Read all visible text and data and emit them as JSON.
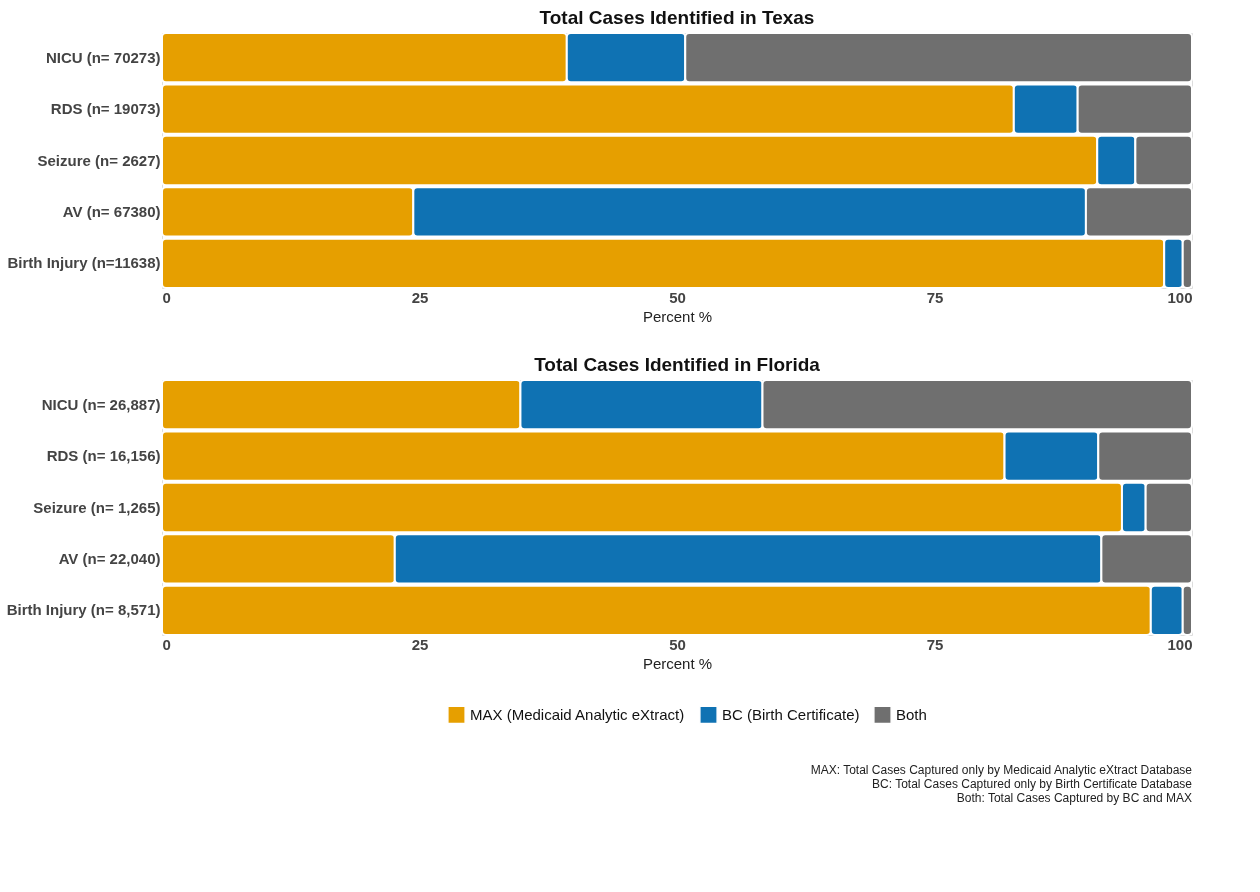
{
  "chart_data": [
    {
      "type": "bar",
      "title": "Total Cases Identified in Texas",
      "xlabel": "Percent %",
      "orientation": "horizontal",
      "stacked": true,
      "legend": false,
      "categories": [
        "NICU (n= 70273)",
        "RDS (n= 19073)",
        "Seizure (n= 2627)",
        "AV (n= 67380)",
        "Birth Injury (n=11638)"
      ],
      "xlim": [
        0,
        100
      ],
      "xticks": [
        0,
        25,
        50,
        75,
        100
      ],
      "series": [
        {
          "color": "#e69f00",
          "values": [
            39.3,
            82.7,
            90.8,
            24.4,
            97.3
          ]
        },
        {
          "color": "#0f72b3",
          "values": [
            11.5,
            6.2,
            3.7,
            65.3,
            1.8
          ]
        },
        {
          "color": "#6f6f6f",
          "values": [
            49.2,
            11.1,
            5.5,
            10.3,
            0.9
          ]
        }
      ]
    },
    {
      "type": "bar",
      "title": "Total Cases Identified in Florida",
      "xlabel": "Percent %",
      "orientation": "horizontal",
      "stacked": true,
      "legend": "bottom",
      "categories": [
        "NICU (n= 26,887)",
        "RDS (n= 16,156)",
        "Seizure (n= 1,265)",
        "AV (n= 22,040)",
        "Birth Injury (n= 8,571)"
      ],
      "xlim": [
        0,
        100
      ],
      "xticks": [
        0,
        25,
        50,
        75,
        100
      ],
      "series": [
        {
          "name": "MAX (Medicaid Analytic eXtract)",
          "color": "#e69f00",
          "values": [
            34.8,
            81.8,
            93.2,
            22.6,
            96.0
          ]
        },
        {
          "name": "BC (Birth Certificate)",
          "color": "#0f72b3",
          "values": [
            23.5,
            9.1,
            2.3,
            68.6,
            3.1
          ]
        },
        {
          "name": "Both",
          "color": "#6f6f6f",
          "values": [
            41.7,
            9.1,
            4.5,
            8.8,
            0.9
          ]
        }
      ],
      "annotations": [
        "MAX: Total Cases Captured only by Medicaid Analytic eXtract Database",
        "BC: Total Cases Captured only by Birth Certificate Database",
        "Both: Total Cases Captured by BC and MAX"
      ]
    }
  ]
}
